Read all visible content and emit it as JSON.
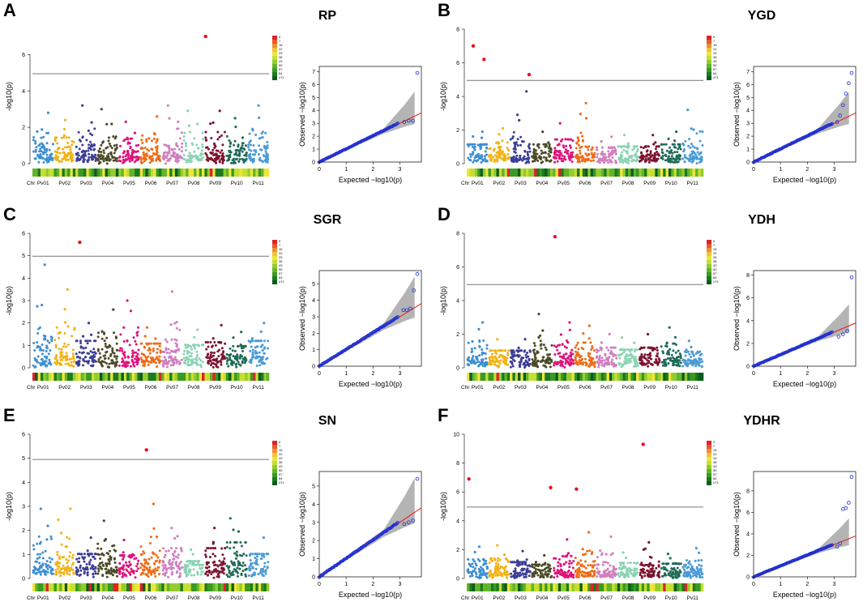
{
  "chromosomes": [
    "Pv01",
    "Pv02",
    "Pv03",
    "Pv04",
    "Pv05",
    "Pv06",
    "Pv07",
    "Pv08",
    "Pv09",
    "Pv10",
    "Pv11"
  ],
  "chr_axis_label": "Chr",
  "chr_colors": [
    "#3d8fd1",
    "#f1b317",
    "#3c3d95",
    "#4a4a26",
    "#e0127a",
    "#ef6c16",
    "#d07fbe",
    "#8ad4b3",
    "#7d1330",
    "#1f6b58",
    "#4a9ad6"
  ],
  "manhattan_ylabel": "-log10(p)",
  "qq_xlabel": "Expected −log10(p)",
  "qq_ylabel": "Observed −log10(p)",
  "density_legend_labels": [
    "0",
    "7",
    "15",
    "22",
    "29",
    "36",
    "43",
    "50",
    "57",
    "64",
    "≥71"
  ],
  "chart_data": [
    {
      "panel": "A",
      "trait": "RP",
      "type": "scatter",
      "manhattan": {
        "ylim": [
          0,
          7.4
        ],
        "yticks": [
          0,
          2,
          4,
          6
        ],
        "threshold": 4.95,
        "peaks": [
          2.8,
          2.4,
          3.2,
          3.0,
          2.3,
          2.6,
          3.2,
          2.9,
          2.9,
          2.5,
          3.2
        ],
        "significant": [
          {
            "chr": "Pv09",
            "pos": 0.05,
            "value": 7.0
          }
        ]
      },
      "qq": {
        "xlim": [
          0,
          3.8
        ],
        "ylim": [
          0,
          7.4
        ],
        "xticks": [
          0,
          1,
          2,
          3
        ],
        "yticks": [
          0,
          1,
          2,
          3,
          4,
          5,
          6,
          7
        ],
        "tail": [
          3.1,
          3.2,
          3.2,
          6.9
        ]
      }
    },
    {
      "panel": "B",
      "trait": "YGD",
      "type": "scatter",
      "manhattan": {
        "ylim": [
          0,
          8
        ],
        "yticks": [
          0,
          2,
          4,
          6,
          8
        ],
        "threshold": 4.95,
        "peaks": [
          1.9,
          2.1,
          4.3,
          1.9,
          2.4,
          3.6,
          1.6,
          1.7,
          1.7,
          1.9,
          3.2
        ],
        "significant": [
          {
            "chr": "Pv01",
            "pos": 0.3,
            "value": 7.0
          },
          {
            "chr": "Pv01",
            "pos": 0.8,
            "value": 6.2
          },
          {
            "chr": "Pv03",
            "pos": 0.9,
            "value": 5.3
          }
        ]
      },
      "qq": {
        "xlim": [
          0,
          3.8
        ],
        "ylim": [
          0,
          7.4
        ],
        "xticks": [
          0,
          1,
          2,
          3
        ],
        "yticks": [
          0,
          1,
          2,
          3,
          4,
          5,
          6,
          7
        ],
        "tail": [
          3.1,
          3.6,
          4.4,
          5.3,
          6.1,
          6.9
        ]
      }
    },
    {
      "panel": "C",
      "trait": "SGR",
      "type": "scatter",
      "manhattan": {
        "ylim": [
          0,
          6
        ],
        "yticks": [
          0,
          1,
          2,
          3,
          4,
          5,
          6
        ],
        "threshold": 4.98,
        "peaks": [
          4.6,
          3.5,
          2.0,
          2.6,
          3.0,
          1.8,
          3.4,
          1.7,
          1.9,
          1.6,
          2.0
        ],
        "significant": [
          {
            "chr": "Pv03",
            "pos": 0.2,
            "value": 5.6
          }
        ]
      },
      "qq": {
        "xlim": [
          0,
          3.8
        ],
        "ylim": [
          0,
          5.8
        ],
        "xticks": [
          0,
          1,
          2,
          3
        ],
        "yticks": [
          0,
          1,
          2,
          3,
          4,
          5
        ],
        "tail": [
          3.4,
          3.4,
          3.5,
          4.6,
          5.6
        ]
      }
    },
    {
      "panel": "D",
      "trait": "YDH",
      "type": "scatter",
      "manhattan": {
        "ylim": [
          0,
          8
        ],
        "yticks": [
          0,
          2,
          4,
          6,
          8
        ],
        "threshold": 4.95,
        "peaks": [
          2.7,
          1.7,
          1.7,
          3.2,
          2.7,
          2.5,
          2.0,
          1.8,
          2.0,
          2.4,
          1.6
        ],
        "significant": [
          {
            "chr": "Pv05",
            "pos": 0.1,
            "value": 7.8
          }
        ]
      },
      "qq": {
        "xlim": [
          0,
          3.8
        ],
        "ylim": [
          0,
          8.4
        ],
        "xticks": [
          0,
          1,
          2,
          3
        ],
        "yticks": [
          0,
          2,
          4,
          6,
          8
        ],
        "tail": [
          2.6,
          2.8,
          3.1,
          7.8
        ]
      }
    },
    {
      "panel": "E",
      "trait": "SN",
      "type": "scatter",
      "manhattan": {
        "ylim": [
          0,
          6
        ],
        "yticks": [
          0,
          1,
          2,
          3,
          4,
          5,
          6
        ],
        "threshold": 4.95,
        "peaks": [
          2.9,
          2.9,
          1.7,
          2.4,
          1.6,
          3.1,
          2.1,
          1.2,
          2.1,
          2.5,
          1.7
        ],
        "significant": [
          {
            "chr": "Pv06",
            "pos": 0.3,
            "value": 5.35
          }
        ]
      },
      "qq": {
        "xlim": [
          0,
          3.8
        ],
        "ylim": [
          0,
          5.8
        ],
        "xticks": [
          0,
          1,
          2,
          3
        ],
        "yticks": [
          0,
          1,
          2,
          3,
          4,
          5
        ],
        "tail": [
          2.9,
          3.0,
          3.1,
          5.4
        ]
      }
    },
    {
      "panel": "F",
      "trait": "YDHR",
      "type": "scatter",
      "manhattan": {
        "ylim": [
          0,
          10
        ],
        "yticks": [
          0,
          2,
          4,
          6,
          8,
          10
        ],
        "threshold": 4.95,
        "peaks": [
          2.2,
          2.3,
          1.9,
          1.6,
          2.7,
          3.2,
          2.9,
          1.8,
          2.5,
          1.7,
          2.1
        ],
        "significant": [
          {
            "chr": "Pv01",
            "pos": 0.1,
            "value": 6.9
          },
          {
            "chr": "Pv04",
            "pos": 0.9,
            "value": 6.3
          },
          {
            "chr": "Pv06",
            "pos": 0.1,
            "value": 6.2
          },
          {
            "chr": "Pv09",
            "pos": 0.2,
            "value": 9.3
          }
        ]
      },
      "qq": {
        "xlim": [
          0,
          3.8
        ],
        "ylim": [
          0,
          9.8
        ],
        "xticks": [
          0,
          1,
          2,
          3
        ],
        "yticks": [
          0,
          2,
          4,
          6,
          8
        ],
        "tail": [
          2.8,
          3.1,
          6.3,
          6.4,
          6.9,
          9.3
        ]
      }
    }
  ]
}
